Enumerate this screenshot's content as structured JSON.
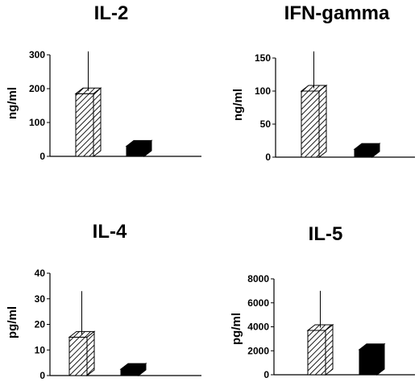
{
  "figure": {
    "background": "#ffffff",
    "ink": "#000000"
  },
  "chart_data": [
    {
      "type": "bar",
      "title": "IL-2",
      "ylabel": "ng/ml",
      "ylim": [
        0,
        300
      ],
      "yticks": [
        "0",
        "100",
        "200",
        "300"
      ],
      "categories": [
        "",
        ""
      ],
      "series": [
        {
          "values": [
            185,
            30
          ],
          "errors": [
            125,
            0
          ],
          "fills": [
            "hatched",
            "solid-black"
          ]
        }
      ],
      "grid": false
    },
    {
      "type": "bar",
      "title": "IFN-gamma",
      "ylabel": "ng/ml",
      "ylim": [
        0,
        150
      ],
      "yticks": [
        "0",
        "50",
        "100",
        "150"
      ],
      "categories": [
        "",
        ""
      ],
      "series": [
        {
          "values": [
            100,
            12
          ],
          "errors": [
            60,
            0
          ],
          "fills": [
            "hatched",
            "solid-black"
          ]
        }
      ],
      "grid": false
    },
    {
      "type": "bar",
      "title": "IL-4",
      "ylabel": "pg/ml",
      "ylim": [
        0,
        40
      ],
      "yticks": [
        "0",
        "10",
        "20",
        "30",
        "40"
      ],
      "categories": [
        "",
        ""
      ],
      "series": [
        {
          "values": [
            15,
            2.5
          ],
          "errors": [
            18,
            0
          ],
          "fills": [
            "hatched",
            "solid-black"
          ]
        }
      ],
      "grid": false
    },
    {
      "type": "bar",
      "title": "IL-5",
      "ylabel": "pg/ml",
      "ylim": [
        0,
        8000
      ],
      "yticks": [
        "0",
        "2000",
        "4000",
        "6000",
        "8000"
      ],
      "categories": [
        "",
        ""
      ],
      "series": [
        {
          "values": [
            3700,
            2100
          ],
          "errors": [
            3300,
            0
          ],
          "fills": [
            "hatched",
            "solid-black"
          ]
        }
      ],
      "grid": false
    }
  ]
}
